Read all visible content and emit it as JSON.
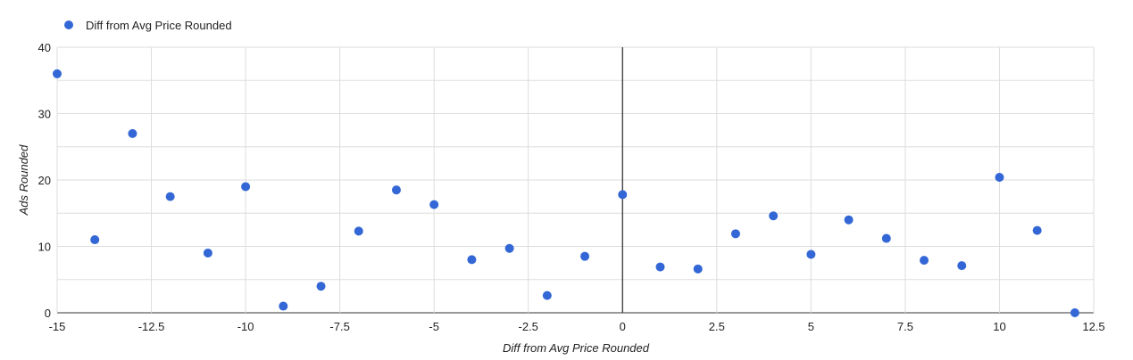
{
  "chart_data": {
    "type": "scatter",
    "xlabel": "Diff from Avg Price Rounded",
    "ylabel": "Ads Rounded",
    "xlim": [
      -15,
      12.5
    ],
    "ylim": [
      0,
      40
    ],
    "x_ticks": [
      -15,
      -12.5,
      -10,
      -7.5,
      -5,
      -2.5,
      0,
      2.5,
      5,
      7.5,
      10,
      12.5
    ],
    "x_tick_labels": [
      "-15",
      "-12.5",
      "-10",
      "-7.5",
      "-5",
      "-2.5",
      "0",
      "2.5",
      "5",
      "7.5",
      "10",
      "12.5"
    ],
    "y_ticks": [
      0,
      10,
      20,
      30,
      40
    ],
    "y_tick_labels": [
      "0",
      "10",
      "20",
      "30",
      "40"
    ],
    "grid": true,
    "legend_position": "top-left",
    "series": [
      {
        "name": "Diff from Avg Price Rounded",
        "color": "#3367d6",
        "points": [
          {
            "x": -15,
            "y": 36
          },
          {
            "x": -14,
            "y": 11
          },
          {
            "x": -13,
            "y": 27
          },
          {
            "x": -12,
            "y": 17.5
          },
          {
            "x": -11,
            "y": 9
          },
          {
            "x": -10,
            "y": 19
          },
          {
            "x": -9,
            "y": 1
          },
          {
            "x": -8,
            "y": 4
          },
          {
            "x": -7,
            "y": 12.3
          },
          {
            "x": -6,
            "y": 18.5
          },
          {
            "x": -5,
            "y": 16.3
          },
          {
            "x": -4,
            "y": 8
          },
          {
            "x": -3,
            "y": 9.7
          },
          {
            "x": -2,
            "y": 2.6
          },
          {
            "x": -1,
            "y": 8.5
          },
          {
            "x": 0,
            "y": 17.8
          },
          {
            "x": 1,
            "y": 6.9
          },
          {
            "x": 2,
            "y": 6.6
          },
          {
            "x": 3,
            "y": 11.9
          },
          {
            "x": 4,
            "y": 14.6
          },
          {
            "x": 5,
            "y": 8.8
          },
          {
            "x": 6,
            "y": 14
          },
          {
            "x": 7,
            "y": 11.2
          },
          {
            "x": 8,
            "y": 7.9
          },
          {
            "x": 9,
            "y": 7.1
          },
          {
            "x": 10,
            "y": 20.4
          },
          {
            "x": 11,
            "y": 12.4
          },
          {
            "x": 12,
            "y": 0
          }
        ]
      }
    ]
  }
}
